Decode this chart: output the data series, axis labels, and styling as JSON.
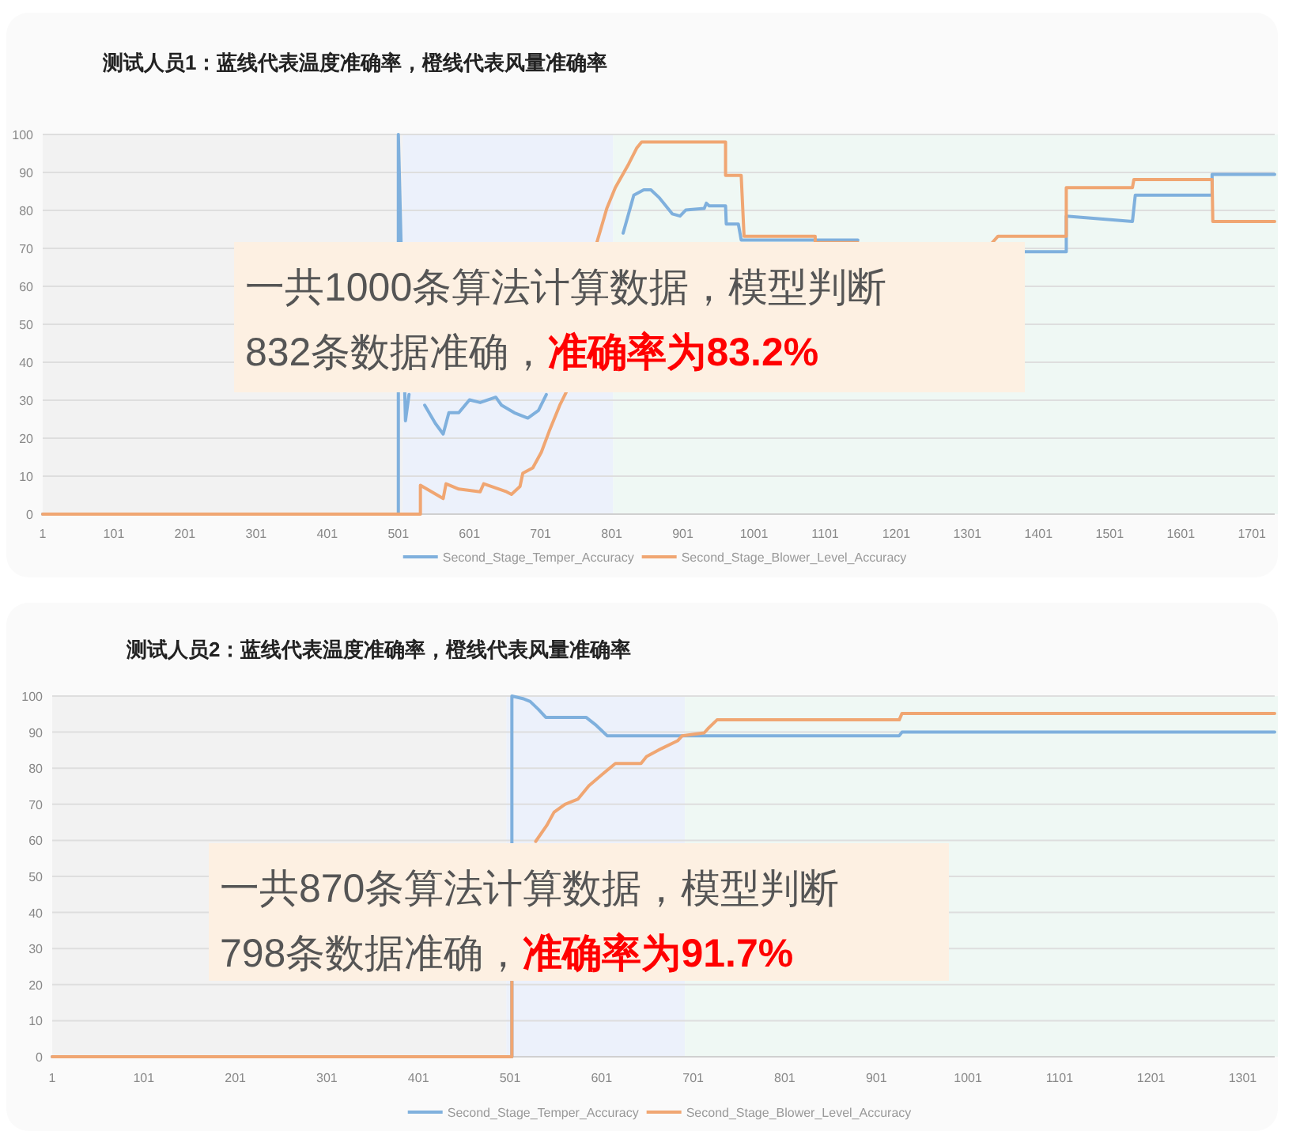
{
  "chart_data": [
    {
      "type": "line",
      "title": "测试人员1：蓝线代表温度准确率，橙线代表风量准确率",
      "xlim": [
        1,
        1733
      ],
      "xticks": [
        1,
        101,
        201,
        301,
        401,
        501,
        601,
        701,
        801,
        901,
        1001,
        1101,
        1201,
        1301,
        1401,
        1501,
        1601,
        1701
      ],
      "ylim": [
        0,
        100
      ],
      "yticks": [
        0,
        10,
        20,
        30,
        40,
        50,
        60,
        70,
        80,
        90,
        100
      ],
      "grid": "y",
      "legend": "bottom",
      "bands": [
        {
          "axis": "x",
          "from": 1,
          "to": 507,
          "color": "#f2f2f2"
        },
        {
          "axis": "x",
          "from": 507,
          "to": 803,
          "color": "#ecf1fb"
        },
        {
          "axis": "x",
          "from": 803,
          "to": 1733,
          "color": "#eff8f4"
        }
      ],
      "annotations": [
        "一共1000条算法计算数据，模型判断",
        "832条数据准确，",
        "准确率为83.2%"
      ],
      "series": [
        {
          "name": "Second_Stage_Temper_Accuracy",
          "color": "#7fb0dd",
          "x": [
            1,
            501,
            501,
            511,
            516,
            null,
            538,
            553,
            564,
            572,
            586,
            601,
            616,
            638,
            646,
            664,
            683,
            698,
            709,
            null,
            817,
            832,
            846,
            856,
            868,
            886,
            897,
            905,
            931,
            934,
            938,
            961,
            962,
            979,
            983,
            1147,
            null,
            1381,
            1440,
            1440,
            1533,
            1537,
            1645,
            1645,
            1733
          ],
          "values": [
            0,
            0,
            100,
            24.6,
            31.5,
            null,
            28.7,
            23.9,
            21.1,
            26.7,
            26.7,
            30.1,
            29.4,
            30.8,
            28.7,
            26.7,
            25.3,
            27.3,
            31.5,
            null,
            74,
            84,
            85.4,
            85.4,
            83.3,
            79.1,
            78.5,
            80.1,
            80.5,
            81.9,
            81.2,
            81.2,
            76.4,
            76.4,
            72.2,
            72.2,
            null,
            69.1,
            69.1,
            78.5,
            77.1,
            84,
            84,
            89.5,
            89.5
          ]
        },
        {
          "name": "Second_Stage_Blower_Level_Accuracy",
          "color": "#f0a672",
          "x": [
            1,
            532,
            532,
            564,
            568,
            586,
            616,
            621,
            653,
            660,
            672,
            676,
            690,
            702,
            713,
            728,
            739,
            null,
            780,
            794,
            806,
            825,
            836,
            843,
            961,
            961,
            983,
            987,
            1087,
            1087,
            1147,
            null,
            1336,
            1344,
            1440,
            1440,
            1533,
            1535,
            1645,
            1646,
            1733
          ],
          "values": [
            0,
            0,
            7.6,
            4.1,
            8,
            6.6,
            5.9,
            8,
            5.9,
            5.2,
            7.3,
            10.8,
            12.2,
            16.3,
            21.8,
            28.7,
            32.9,
            null,
            71.5,
            80.5,
            86,
            92.3,
            96.4,
            98,
            98,
            89.2,
            89.2,
            73.2,
            73.2,
            71.5,
            71.5,
            null,
            71.5,
            73.2,
            73.2,
            86,
            86,
            88.1,
            88.1,
            77.1,
            77.1
          ]
        }
      ]
    },
    {
      "type": "line",
      "title": "测试人员2：蓝线代表温度准确率，橙线代表风量准确率",
      "xlim": [
        1,
        1336
      ],
      "xticks": [
        1,
        101,
        201,
        301,
        401,
        501,
        601,
        701,
        801,
        901,
        1001,
        1101,
        1201,
        1301
      ],
      "ylim": [
        0,
        100
      ],
      "yticks": [
        0,
        10,
        20,
        30,
        40,
        50,
        60,
        70,
        80,
        90,
        100
      ],
      "grid": "y",
      "legend": "bottom",
      "bands": [
        {
          "axis": "x",
          "from": 1,
          "to": 497,
          "color": "#f2f2f2"
        },
        {
          "axis": "x",
          "from": 497,
          "to": 692,
          "color": "#ecf1fb"
        },
        {
          "axis": "x",
          "from": 692,
          "to": 1336,
          "color": "#eff8f4"
        }
      ],
      "annotations": [
        "一共870条算法计算数据，模型判断",
        "798条数据准确，",
        "准确率为91.7%"
      ],
      "series": [
        {
          "name": "Second_Stage_Temper_Accuracy",
          "color": "#7fb0dd",
          "x": [
            1,
            503,
            503,
            515,
            523,
            532,
            540,
            584,
            595,
            607,
            926,
            929,
            1336
          ],
          "values": [
            0,
            0,
            100,
            99.3,
            98.5,
            96.3,
            94.1,
            94.1,
            91.9,
            89,
            89,
            90,
            90
          ]
        },
        {
          "name": "Second_Stage_Blower_Level_Accuracy",
          "color": "#f0a672",
          "x": [
            1,
            503,
            503,
            null,
            529,
            541,
            549,
            561,
            575,
            587,
            604,
            616,
            644,
            650,
            666,
            684,
            689,
            713,
            718,
            727,
            926,
            929,
            1336
          ],
          "values": [
            0,
            0,
            20.9,
            null,
            59.7,
            64.1,
            67.8,
            70,
            71.4,
            75.1,
            78.8,
            81.3,
            81.3,
            83.2,
            85.4,
            87.6,
            89,
            89.8,
            91.2,
            93.4,
            93.4,
            95.2,
            95.2
          ]
        }
      ]
    }
  ]
}
